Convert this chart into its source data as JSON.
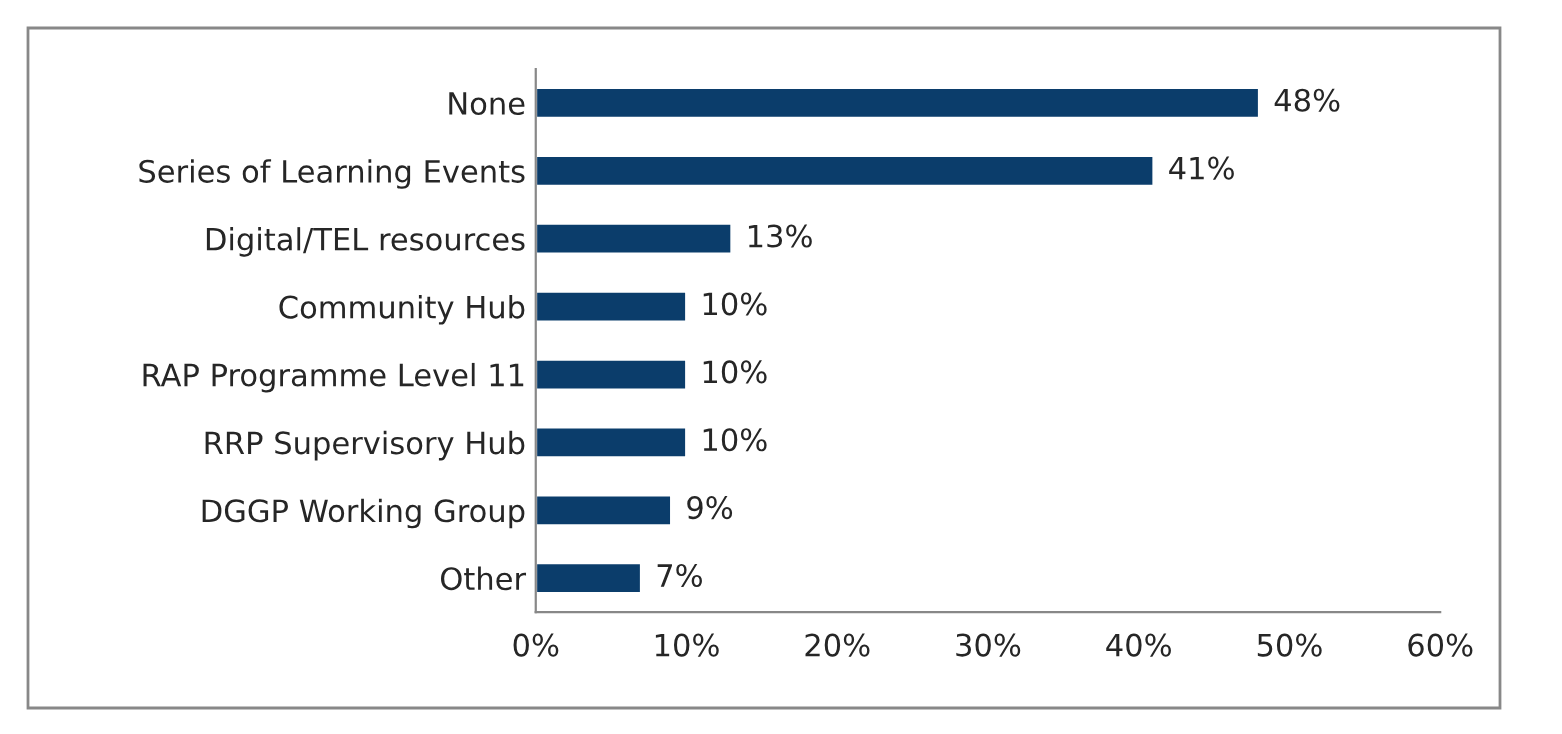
{
  "chart_data": {
    "type": "bar",
    "orientation": "horizontal",
    "categories": [
      "None",
      "Series of Learning Events",
      "Digital/TEL resources",
      "Community Hub",
      "RAP Programme Level 11",
      "RRP Supervisory Hub",
      "DGGP Working Group",
      "Other"
    ],
    "values": [
      48,
      41,
      13,
      10,
      10,
      10,
      9,
      7
    ],
    "value_labels": [
      "48%",
      "41%",
      "13%",
      "10%",
      "10%",
      "10%",
      "9%",
      "7%"
    ],
    "color": "#0b3d6b",
    "xlim": [
      0,
      60
    ],
    "xticks": [
      {
        "value": 0,
        "label": "0%"
      },
      {
        "value": 10,
        "label": "10%"
      },
      {
        "value": 20,
        "label": "20%"
      },
      {
        "value": 30,
        "label": "30%"
      },
      {
        "value": 40,
        "label": "40%"
      },
      {
        "value": 50,
        "label": "50%"
      },
      {
        "value": 60,
        "label": "60%"
      }
    ],
    "grid": false,
    "legend": false
  }
}
